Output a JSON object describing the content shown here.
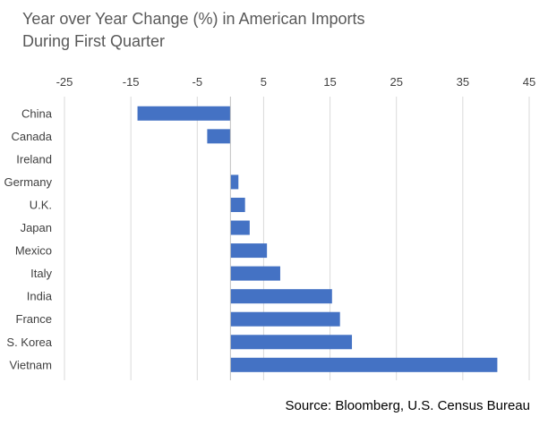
{
  "chart_data": {
    "type": "bar",
    "orientation": "horizontal",
    "title": [
      "Year over Year Change (%) in American Imports",
      "During First Quarter"
    ],
    "categories": [
      "China",
      "Canada",
      "Ireland",
      "Germany",
      "U.K.",
      "Japan",
      "Mexico",
      "Italy",
      "India",
      "France",
      "S. Korea",
      "Vietnam"
    ],
    "values": [
      -14,
      -3.5,
      0,
      1.2,
      2.2,
      2.9,
      5.5,
      7.5,
      15.3,
      16.5,
      18.3,
      40.2
    ],
    "xlim": [
      -25,
      45
    ],
    "xticks": [
      -25,
      -15,
      -5,
      5,
      15,
      25,
      35,
      45
    ],
    "xtick_position": "top",
    "grid": "vertical",
    "bar_color": "#4472C4",
    "source": "Source: Bloomberg, U.S. Census Bureau"
  }
}
